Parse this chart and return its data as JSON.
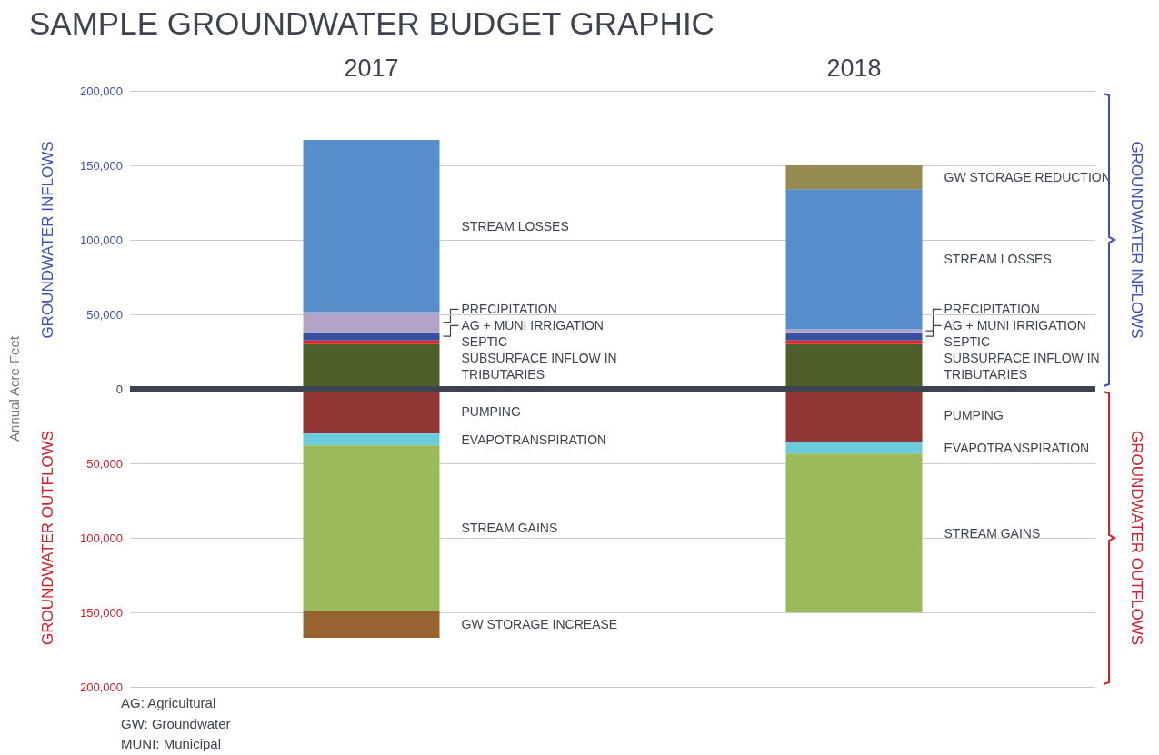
{
  "chart_data": {
    "type": "bar",
    "title": "SAMPLE GROUNDWATER BUDGET GRAPHIC",
    "ylabel": "Annual Acre-Feet",
    "categories": [
      "2017",
      "2018"
    ],
    "stacked": true,
    "legend": false,
    "grid": "y",
    "ylim": [
      -200000,
      200000
    ],
    "yticks": [
      {
        "value": -200000,
        "label": "200,000"
      },
      {
        "value": -150000,
        "label": "150,000"
      },
      {
        "value": -100000,
        "label": "100,000"
      },
      {
        "value": -50000,
        "label": "50,000"
      },
      0,
      {
        "value": 50000,
        "label": "50,000"
      },
      {
        "value": 100000,
        "label": "100,000"
      },
      {
        "value": 150000,
        "label": "150,000"
      },
      {
        "value": 200000,
        "label": "200,000"
      }
    ],
    "series": [
      {
        "name": "SUBSURFACE INFLOW IN TRIBUTARIES",
        "color": "#4f5f2c",
        "values": [
          30000,
          30000
        ]
      },
      {
        "name": "SEPTIC",
        "color": "#e8262b",
        "values": [
          2500,
          2500
        ]
      },
      {
        "name": "AG + MUNI IRRIGATION",
        "color": "#3a4fa0",
        "values": [
          5500,
          5500
        ]
      },
      {
        "name": "PRECIPITATION",
        "color": "#b3a3c9",
        "values": [
          13500,
          2000
        ]
      },
      {
        "name": "STREAM LOSSES",
        "color": "#588dcb",
        "values": [
          115500,
          94000
        ]
      },
      {
        "name": "GW STORAGE REDUCTION",
        "color": "#948a52",
        "values": [
          null,
          16000
        ]
      },
      {
        "name": "PUMPING",
        "color": "#923535",
        "values": [
          -30000,
          -35500
        ]
      },
      {
        "name": "EVAPOTRANSPIRATION",
        "color": "#6ccbdc",
        "values": [
          -8000,
          -8000
        ]
      },
      {
        "name": "STREAM GAINS",
        "color": "#9bbb5a",
        "values": [
          -111000,
          -106500
        ]
      },
      {
        "name": "GW STORAGE INCREASE",
        "color": "#976431",
        "values": [
          -18000,
          null
        ]
      }
    ],
    "ref_lines": [
      {
        "axis": "y",
        "value": 0,
        "color": "#3d4450"
      }
    ],
    "annotations": [
      "GROUNDWATER INFLOWS",
      "GROUNDWATER OUTFLOWS",
      "AG: Agricultural",
      "GW: Groundwater",
      "MUNI: Municipal"
    ]
  }
}
